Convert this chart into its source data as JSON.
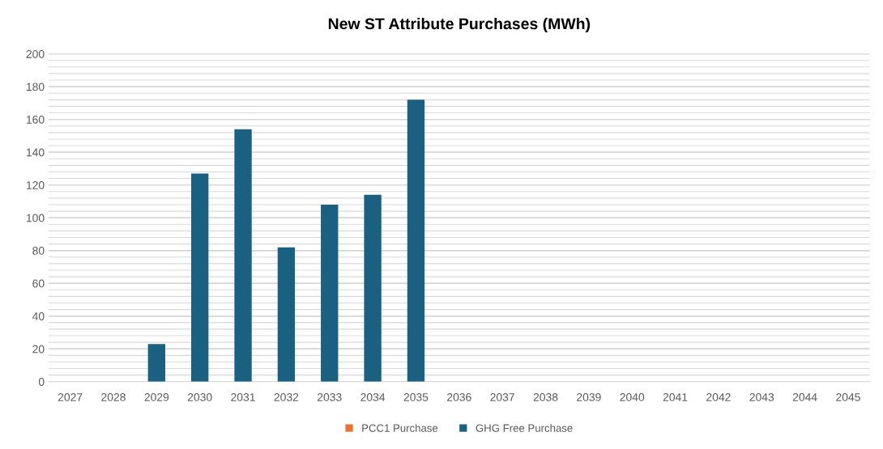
{
  "chart_data": {
    "type": "bar",
    "title": "New ST Attribute Purchases (MWh)",
    "categories": [
      "2027",
      "2028",
      "2029",
      "2030",
      "2031",
      "2032",
      "2033",
      "2034",
      "2035",
      "2036",
      "2037",
      "2038",
      "2039",
      "2040",
      "2041",
      "2042",
      "2043",
      "2044",
      "2045"
    ],
    "series": [
      {
        "name": "PCC1 Purchase",
        "color": "#e97132",
        "values": [
          0,
          0,
          0,
          0,
          0,
          0,
          0,
          0,
          0,
          0,
          0,
          0,
          0,
          0,
          0,
          0,
          0,
          0,
          0
        ]
      },
      {
        "name": "GHG Free Purchase",
        "color": "#1a6181",
        "values": [
          0,
          0,
          23,
          127,
          154,
          82,
          108,
          114,
          172,
          0,
          0,
          0,
          0,
          0,
          0,
          0,
          0,
          0,
          0
        ]
      }
    ],
    "stacked": true,
    "ylim": [
      0,
      200
    ],
    "yticks": [
      0,
      {
        "value": 4,
        "label": null
      },
      {
        "value": 8,
        "label": null
      },
      {
        "value": 12,
        "label": null
      },
      {
        "value": 16,
        "label": null
      },
      20,
      {
        "value": 24,
        "label": null
      },
      {
        "value": 28,
        "label": null
      },
      {
        "value": 32,
        "label": null
      },
      {
        "value": 36,
        "label": null
      },
      40,
      {
        "value": 44,
        "label": null
      },
      {
        "value": 48,
        "label": null
      },
      {
        "value": 52,
        "label": null
      },
      {
        "value": 56,
        "label": null
      },
      60,
      {
        "value": 64,
        "label": null
      },
      {
        "value": 68,
        "label": null
      },
      {
        "value": 72,
        "label": null
      },
      {
        "value": 76,
        "label": null
      },
      80,
      {
        "value": 84,
        "label": null
      },
      {
        "value": 88,
        "label": null
      },
      {
        "value": 92,
        "label": null
      },
      {
        "value": 96,
        "label": null
      },
      100,
      {
        "value": 104,
        "label": null
      },
      {
        "value": 108,
        "label": null
      },
      {
        "value": 112,
        "label": null
      },
      {
        "value": 116,
        "label": null
      },
      120,
      {
        "value": 124,
        "label": null
      },
      {
        "value": 128,
        "label": null
      },
      {
        "value": 132,
        "label": null
      },
      {
        "value": 136,
        "label": null
      },
      140,
      {
        "value": 144,
        "label": null
      },
      {
        "value": 148,
        "label": null
      },
      {
        "value": 152,
        "label": null
      },
      {
        "value": 156,
        "label": null
      },
      160,
      {
        "value": 164,
        "label": null
      },
      {
        "value": 168,
        "label": null
      },
      {
        "value": 172,
        "label": null
      },
      {
        "value": 176,
        "label": null
      },
      180,
      {
        "value": 184,
        "label": null
      },
      {
        "value": 188,
        "label": null
      },
      {
        "value": 192,
        "label": null
      },
      {
        "value": 196,
        "label": null
      },
      200
    ],
    "grid": "y",
    "legend": "bottom"
  }
}
